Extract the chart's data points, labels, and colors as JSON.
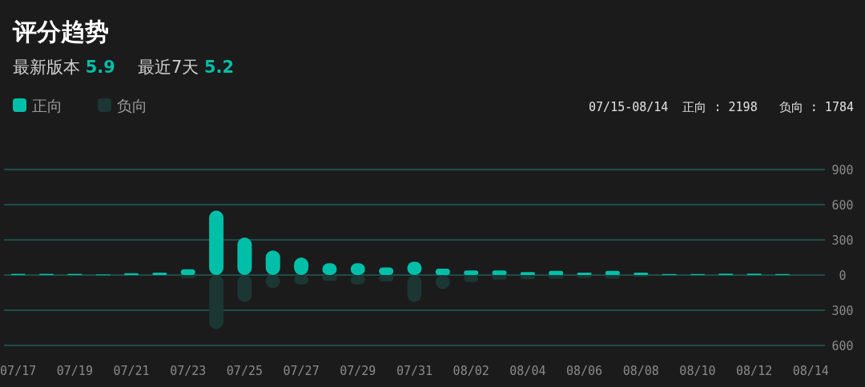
{
  "chart_data": {
    "type": "bar",
    "title": "评分趋势",
    "stacked": true,
    "grid": "y",
    "legend": "top left",
    "annotations": [
      "最新版本 5.9",
      "最近7天 5.2",
      "07/15-08/14  正向 : 2198   负向 : 1784"
    ],
    "categories": [
      "07/17",
      null,
      "07/19",
      null,
      "07/21",
      null,
      "07/23",
      null,
      "07/25",
      null,
      "07/27",
      null,
      "07/29",
      null,
      "07/31",
      null,
      "08/02",
      null,
      "08/04",
      null,
      "08/06",
      null,
      "08/08",
      null,
      "08/10",
      null,
      "08/12",
      null,
      "08/14"
    ],
    "series": [
      {
        "name": "正向",
        "color": "#00bfa8",
        "values": [
          10,
          10,
          10,
          5,
          15,
          20,
          50,
          550,
          320,
          210,
          150,
          100,
          100,
          65,
          115,
          55,
          40,
          40,
          25,
          35,
          20,
          35,
          20,
          8,
          8,
          12,
          12,
          8,
          null
        ]
      },
      {
        "name": "负向",
        "color": "#1b3633",
        "values": [
          null,
          null,
          null,
          null,
          null,
          null,
          -25,
          -460,
          -230,
          -110,
          -80,
          -50,
          -80,
          -55,
          -230,
          -120,
          -60,
          -40,
          -35,
          -30,
          -25,
          -30,
          -15,
          null,
          null,
          null,
          null,
          null,
          null
        ]
      }
    ],
    "ylim": [
      -600,
      900
    ],
    "yticks": [
      {
        "value": -600,
        "label": "600"
      },
      {
        "value": -300,
        "label": "300"
      },
      0,
      300,
      600,
      900
    ]
  }
}
